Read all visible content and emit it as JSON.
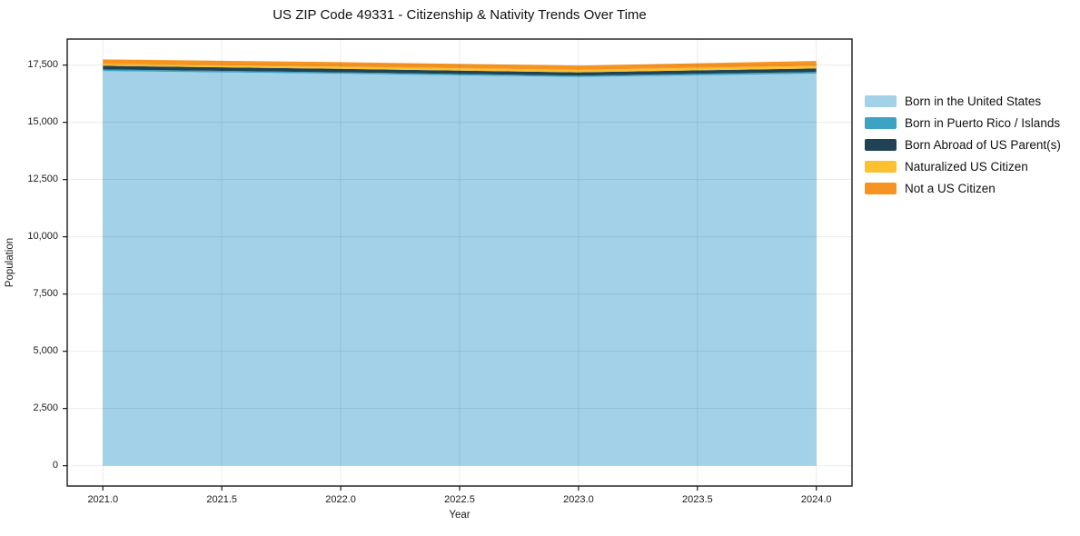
{
  "chart_data": {
    "type": "area",
    "stacked": true,
    "title": "US ZIP Code 49331 - Citizenship & Nativity Trends Over Time",
    "xlabel": "Year",
    "ylabel": "Population",
    "x": [
      2021,
      2022,
      2023,
      2024
    ],
    "series": [
      {
        "name": "Born in the United States",
        "color": "#a2d1e8",
        "values": [
          17240,
          17120,
          16980,
          17130
        ]
      },
      {
        "name": "Born in Puerto Rico / Islands",
        "color": "#3da3c2",
        "values": [
          70,
          65,
          60,
          70
        ]
      },
      {
        "name": "Born Abroad of US Parent(s)",
        "color": "#1f4254",
        "values": [
          160,
          150,
          145,
          155
        ]
      },
      {
        "name": "Naturalized US Citizen",
        "color": "#fcc130",
        "values": [
          85,
          95,
          105,
          110
        ]
      },
      {
        "name": "Not a US Citizen",
        "color": "#f79421",
        "values": [
          195,
          200,
          190,
          215
        ]
      }
    ],
    "xlim": [
      2020.85,
      2024.15
    ],
    "ylim": [
      -887,
      18637
    ],
    "x_ticks": [
      {
        "value": 2021.0,
        "label": "2021.0"
      },
      {
        "value": 2021.5,
        "label": "2021.5"
      },
      {
        "value": 2022.0,
        "label": "2022.0"
      },
      {
        "value": 2022.5,
        "label": "2022.5"
      },
      {
        "value": 2023.0,
        "label": "2023.0"
      },
      {
        "value": 2023.5,
        "label": "2023.5"
      },
      {
        "value": 2024.0,
        "label": "2024.0"
      }
    ],
    "y_ticks": [
      {
        "value": 0,
        "label": "0"
      },
      {
        "value": 2500,
        "label": "2,500"
      },
      {
        "value": 5000,
        "label": "5,000"
      },
      {
        "value": 7500,
        "label": "7,500"
      },
      {
        "value": 10000,
        "label": "10,000"
      },
      {
        "value": 12500,
        "label": "12,500"
      },
      {
        "value": 15000,
        "label": "15,000"
      },
      {
        "value": 17500,
        "label": "17,500"
      }
    ],
    "grid": true,
    "grid_color": "rgba(0,0,0,0.08)",
    "spine_color": "#1a1a1a",
    "legend_position": "right-outside"
  }
}
